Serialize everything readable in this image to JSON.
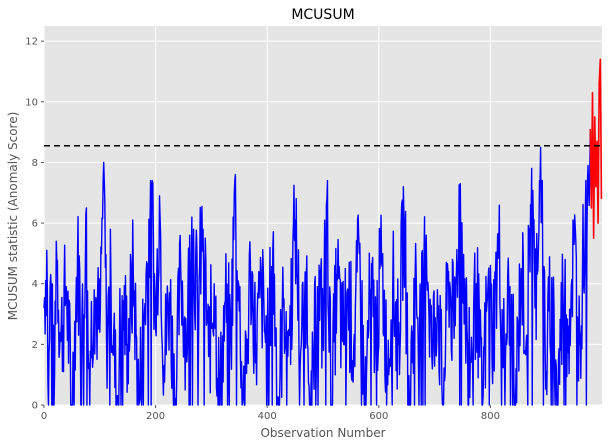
{
  "chart_data": {
    "type": "line",
    "title": "MCUSUM",
    "xlabel": "Observation Number",
    "ylabel": "MCUSUM statistic (Anomaly Score)",
    "xlim": [
      0,
      1000
    ],
    "ylim": [
      0,
      12.5
    ],
    "xticks": [
      0,
      200,
      400,
      600,
      800
    ],
    "yticks": [
      0,
      2,
      4,
      6,
      8,
      10,
      12
    ],
    "grid": true,
    "threshold": 8.55,
    "series": [
      {
        "color": "#0000ff",
        "n": 980,
        "x_start": 0,
        "x_end": 979,
        "samples": [
          [
            0,
            3.2
          ],
          [
            5,
            5.1
          ],
          [
            8,
            0
          ],
          [
            12,
            4.3
          ],
          [
            18,
            0
          ],
          [
            22,
            5.4
          ],
          [
            30,
            2.1
          ],
          [
            40,
            3.9
          ],
          [
            50,
            0
          ],
          [
            60,
            4.8
          ],
          [
            70,
            2.3
          ],
          [
            75,
            6.3
          ],
          [
            80,
            1.2
          ],
          [
            90,
            3.8
          ],
          [
            100,
            2.4
          ],
          [
            107,
            8.0
          ],
          [
            112,
            2.2
          ],
          [
            120,
            4.1
          ],
          [
            130,
            0
          ],
          [
            140,
            3.6
          ],
          [
            150,
            2.0
          ],
          [
            160,
            4.4
          ],
          [
            170,
            0
          ],
          [
            180,
            3.1
          ],
          [
            193,
            7.2
          ],
          [
            200,
            2.5
          ],
          [
            207,
            6.9
          ],
          [
            215,
            1.3
          ],
          [
            225,
            3.7
          ],
          [
            235,
            0
          ],
          [
            245,
            4.5
          ],
          [
            255,
            2.1
          ],
          [
            265,
            6.2
          ],
          [
            275,
            3.3
          ],
          [
            285,
            5.8
          ],
          [
            295,
            1.6
          ],
          [
            305,
            4.0
          ],
          [
            315,
            0
          ],
          [
            325,
            3.4
          ],
          [
            335,
            2.2
          ],
          [
            343,
            7.6
          ],
          [
            350,
            3.1
          ],
          [
            360,
            0
          ],
          [
            370,
            4.6
          ],
          [
            380,
            2.0
          ],
          [
            390,
            3.8
          ],
          [
            400,
            1.5
          ],
          [
            410,
            5.1
          ],
          [
            420,
            0
          ],
          [
            430,
            3.5
          ],
          [
            440,
            2.3
          ],
          [
            450,
            6.1
          ],
          [
            460,
            1.8
          ],
          [
            470,
            4.2
          ],
          [
            480,
            0
          ],
          [
            490,
            3.9
          ],
          [
            500,
            2.7
          ],
          [
            507,
            6.8
          ],
          [
            515,
            0
          ],
          [
            525,
            4.3
          ],
          [
            535,
            2.1
          ],
          [
            545,
            3.6
          ],
          [
            555,
            1.9
          ],
          [
            565,
            5.0
          ],
          [
            575,
            0
          ],
          [
            585,
            3.8
          ],
          [
            595,
            2.4
          ],
          [
            605,
            4.7
          ],
          [
            615,
            1.2
          ],
          [
            625,
            3.9
          ],
          [
            635,
            2.0
          ],
          [
            645,
            6.3
          ],
          [
            655,
            0
          ],
          [
            665,
            4.1
          ],
          [
            675,
            2.3
          ],
          [
            685,
            5.6
          ],
          [
            695,
            1.6
          ],
          [
            705,
            3.8
          ],
          [
            715,
            0
          ],
          [
            725,
            4.4
          ],
          [
            735,
            2.2
          ],
          [
            746,
            7.3
          ],
          [
            755,
            3.1
          ],
          [
            765,
            1.4
          ],
          [
            775,
            4.0
          ],
          [
            785,
            0
          ],
          [
            795,
            3.6
          ],
          [
            805,
            2.5
          ],
          [
            815,
            5.2
          ],
          [
            825,
            1.8
          ],
          [
            835,
            3.9
          ],
          [
            845,
            0
          ],
          [
            855,
            4.5
          ],
          [
            865,
            2.3
          ],
          [
            874,
            7.8
          ],
          [
            880,
            3.2
          ],
          [
            890,
            8.5
          ],
          [
            900,
            1.1
          ],
          [
            910,
            4.2
          ],
          [
            920,
            0
          ],
          [
            930,
            3.8
          ],
          [
            940,
            2.6
          ],
          [
            950,
            5.3
          ],
          [
            960,
            2.0
          ],
          [
            965,
            4.4
          ],
          [
            970,
            6.1
          ],
          [
            975,
            7.9
          ],
          [
            979,
            9.1
          ]
        ]
      },
      {
        "color": "#ff0000",
        "x": [
          979,
          981,
          983,
          985,
          987,
          989,
          991,
          993,
          995,
          997,
          999
        ],
        "values": [
          9.1,
          6.5,
          10.3,
          5.5,
          9.5,
          7.2,
          8.7,
          6.0,
          10.6,
          11.4,
          6.8
        ]
      }
    ],
    "colors": {
      "plot_background": "#e5e5e5",
      "grid": "#ffffff",
      "threshold": "#000000"
    }
  }
}
